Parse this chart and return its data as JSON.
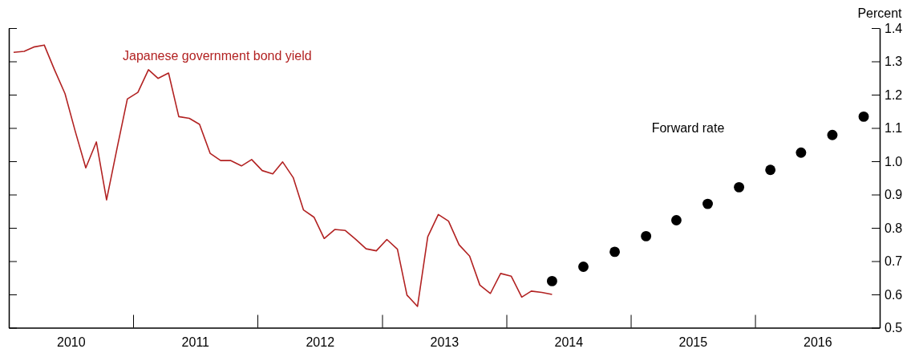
{
  "chart_data": {
    "type": "line",
    "ylabel": "Percent",
    "xlim": [
      "2010-01-01",
      "2017-01-01"
    ],
    "xticks": [
      {
        "value": "2010-01-01",
        "label": null
      },
      {
        "value": "2010-07-02",
        "label": "2010"
      },
      {
        "value": "2011-01-01",
        "label": null
      },
      {
        "value": "2011-07-02",
        "label": "2011"
      },
      {
        "value": "2012-01-01",
        "label": null
      },
      {
        "value": "2012-07-02",
        "label": "2012"
      },
      {
        "value": "2013-01-01",
        "label": null
      },
      {
        "value": "2013-07-02",
        "label": "2013"
      },
      {
        "value": "2014-01-01",
        "label": null
      },
      {
        "value": "2014-07-02",
        "label": "2014"
      },
      {
        "value": "2015-01-01",
        "label": null
      },
      {
        "value": "2015-07-02",
        "label": "2015"
      },
      {
        "value": "2016-01-01",
        "label": null
      },
      {
        "value": "2016-07-02",
        "label": "2016"
      },
      {
        "value": "2017-01-01",
        "label": null
      }
    ],
    "ylim": [
      0.5,
      1.4
    ],
    "yticks": [
      0.5,
      0.6,
      0.7,
      0.8,
      0.9,
      {
        "value": 1.0,
        "label": "1.0"
      },
      1.1,
      1.2,
      1.3,
      1.4
    ],
    "grid": false,
    "legend": false,
    "series": [
      {
        "name": "Japanese government bond yield",
        "color": "#b22222",
        "marker": "none",
        "line_style": "solid",
        "x": [
          "2010-01-15",
          "2010-02-15",
          "2010-03-15",
          "2010-04-15",
          "2010-05-15",
          "2010-06-15",
          "2010-07-15",
          "2010-08-15",
          "2010-09-15",
          "2010-10-15",
          "2010-11-15",
          "2010-12-15",
          "2011-01-15",
          "2011-02-15",
          "2011-03-15",
          "2011-04-15",
          "2011-05-15",
          "2011-06-15",
          "2011-07-15",
          "2011-08-15",
          "2011-09-15",
          "2011-10-15",
          "2011-11-15",
          "2011-12-15",
          "2012-01-15",
          "2012-02-15",
          "2012-03-15",
          "2012-04-15",
          "2012-05-15",
          "2012-06-15",
          "2012-07-15",
          "2012-08-15",
          "2012-09-15",
          "2012-10-15",
          "2012-11-15",
          "2012-12-15",
          "2013-01-15",
          "2013-02-15",
          "2013-03-15",
          "2013-04-15",
          "2013-05-15",
          "2013-06-15",
          "2013-07-15",
          "2013-08-15",
          "2013-09-15",
          "2013-10-15",
          "2013-11-15",
          "2013-12-15",
          "2014-01-15",
          "2014-02-15",
          "2014-03-15",
          "2014-04-15",
          "2014-05-15"
        ],
        "values": [
          1.327,
          1.33,
          1.343,
          1.349,
          1.275,
          1.203,
          1.09,
          0.98,
          1.058,
          0.884,
          1.04,
          1.187,
          1.207,
          1.275,
          1.249,
          1.265,
          1.134,
          1.129,
          1.111,
          1.024,
          1.002,
          1.002,
          0.986,
          1.005,
          0.972,
          0.962,
          0.998,
          0.951,
          0.854,
          0.832,
          0.768,
          0.795,
          0.792,
          0.766,
          0.737,
          0.731,
          0.765,
          0.736,
          0.598,
          0.564,
          0.773,
          0.84,
          0.82,
          0.749,
          0.715,
          0.628,
          0.603,
          0.663,
          0.655,
          0.592,
          0.61,
          0.606,
          0.6
        ]
      },
      {
        "name": "Forward rate",
        "type": "scatter",
        "color": "#000000",
        "marker": "circle",
        "x": [
          "2014-05-15",
          "2014-08-15",
          "2014-11-15",
          "2015-02-15",
          "2015-05-15",
          "2015-08-15",
          "2015-11-15",
          "2016-02-15",
          "2016-05-15",
          "2016-08-15",
          "2016-11-15"
        ],
        "values": [
          0.64,
          0.683,
          0.728,
          0.775,
          0.823,
          0.872,
          0.922,
          0.974,
          1.026,
          1.079,
          1.134
        ]
      }
    ]
  }
}
